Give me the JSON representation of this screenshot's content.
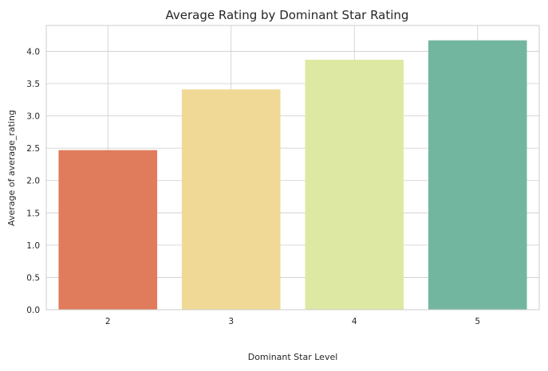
{
  "chart_data": {
    "type": "bar",
    "title": "Average Rating by Dominant Star Rating",
    "xlabel": "Dominant Star Level",
    "ylabel": "Average of average_rating",
    "categories": [
      "2",
      "3",
      "4",
      "5"
    ],
    "values": [
      2.47,
      3.41,
      3.87,
      4.17
    ],
    "colors": [
      "#e07b5b",
      "#f0d896",
      "#dde9a2",
      "#73b6a0"
    ],
    "ylim": [
      0,
      4.4
    ],
    "yticks": [
      "0.0",
      "0.5",
      "1.0",
      "1.5",
      "2.0",
      "2.5",
      "3.0",
      "3.5",
      "4.0"
    ],
    "grid": true,
    "legend": "none"
  }
}
